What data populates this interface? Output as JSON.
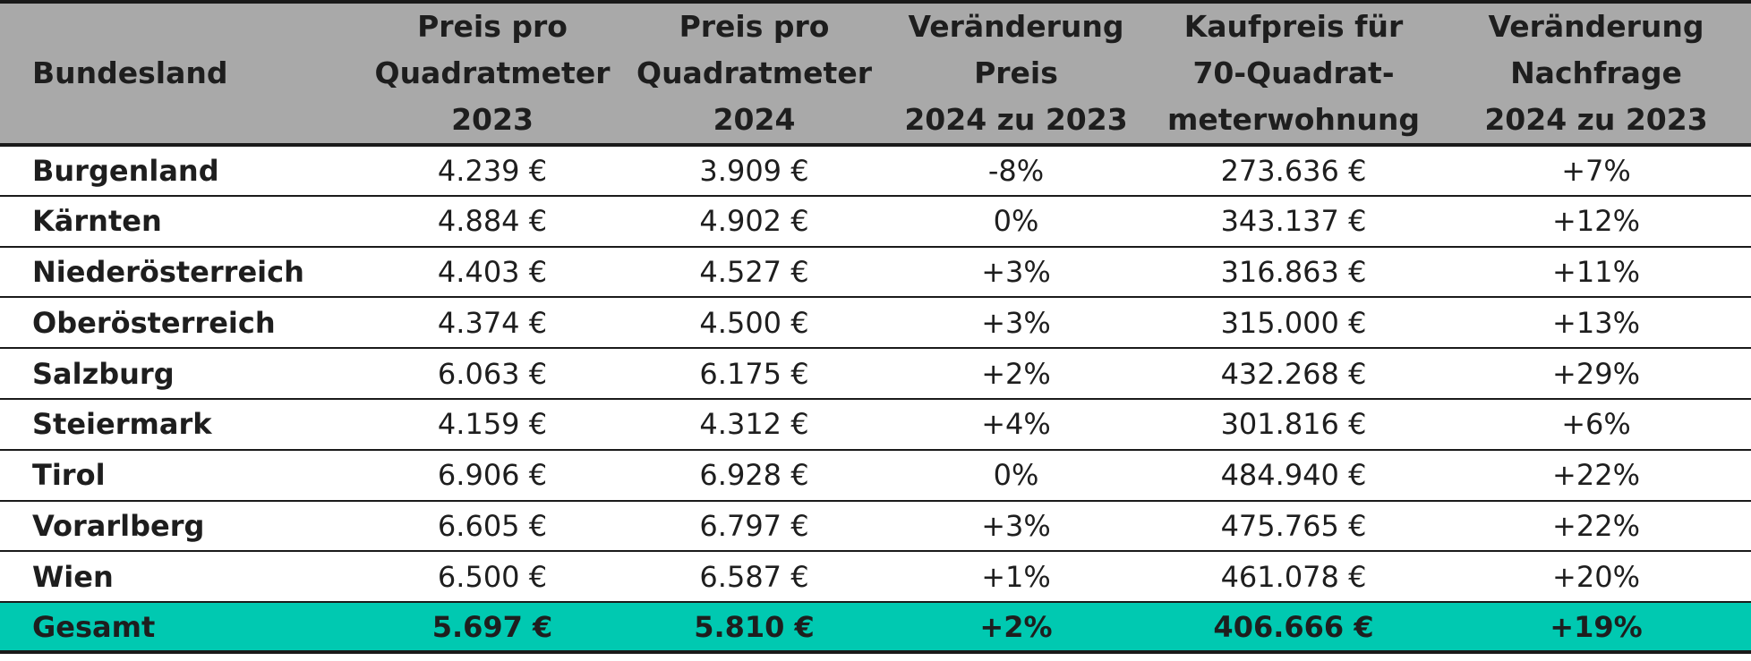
{
  "table": {
    "headers": [
      "Bundesland",
      "Preis pro\nQuadratmeter\n2023",
      "Preis pro\nQuadratmeter\n2024",
      "Veränderung\nPreis\n2024 zu 2023",
      "Kaufpreis für\n70-Quadrat-\nmeterwohnung",
      "Veränderung\nNachfrage\n2024 zu 2023"
    ],
    "rows": [
      [
        "Burgenland",
        "4.239 €",
        "3.909 €",
        "-8%",
        "273.636 €",
        "+7%"
      ],
      [
        "Kärnten",
        "4.884 €",
        "4.902 €",
        "0%",
        "343.137 €",
        "+12%"
      ],
      [
        "Niederösterreich",
        "4.403 €",
        "4.527 €",
        "+3%",
        "316.863 €",
        "+11%"
      ],
      [
        "Oberösterreich",
        "4.374 €",
        "4.500 €",
        "+3%",
        "315.000 €",
        "+13%"
      ],
      [
        "Salzburg",
        "6.063 €",
        "6.175 €",
        "+2%",
        "432.268 €",
        "+29%"
      ],
      [
        "Steiermark",
        "4.159 €",
        "4.312 €",
        "+4%",
        "301.816 €",
        "+6%"
      ],
      [
        "Tirol",
        "6.906 €",
        "6.928 €",
        "0%",
        "484.940 €",
        "+22%"
      ],
      [
        "Vorarlberg",
        "6.605 €",
        "6.797 €",
        "+3%",
        "475.765 €",
        "+22%"
      ],
      [
        "Wien",
        "6.500 €",
        "6.587 €",
        "+1%",
        "461.078 €",
        "+20%"
      ]
    ],
    "total": [
      "Gesamt",
      "5.697 €",
      "5.810 €",
      "+2%",
      "406.666 €",
      "+19%"
    ]
  },
  "colors": {
    "header_bg": "#a9a9a9",
    "total_bg": "#00c9b1",
    "text": "#1e1e1e",
    "rule": "#1a1a1a"
  }
}
